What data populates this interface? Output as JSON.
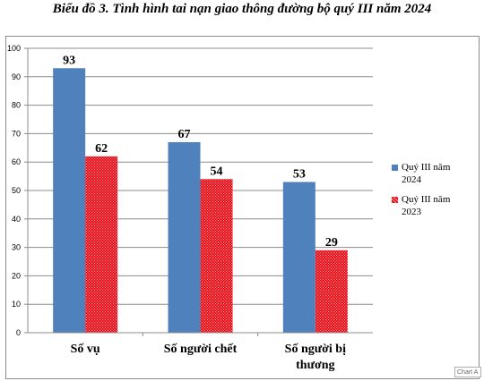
{
  "title": "Biểu đồ 3. Tình hình tai nạn giao thông đường bộ quý III năm 2024",
  "watermark": "Chart A",
  "colors": {
    "series1": "#4f81bd",
    "series2": "#e8101a"
  },
  "chart_data": {
    "type": "bar",
    "title": "Biểu đồ 3. Tình hình tai nạn giao thông đường bộ quý III năm 2024",
    "categories": [
      [
        "Số vụ"
      ],
      [
        "Số người chết"
      ],
      [
        "Số người bị",
        "thương"
      ]
    ],
    "series": [
      {
        "name": "Quý III năm 2024",
        "name_lines": [
          "Quý III năm",
          "2024"
        ],
        "values": [
          93,
          67,
          53
        ]
      },
      {
        "name": "Quý III năm 2023",
        "name_lines": [
          "Quý III năm",
          "2023"
        ],
        "values": [
          62,
          54,
          29
        ]
      }
    ],
    "ylim": [
      0,
      100
    ],
    "yticks": [
      0,
      10,
      20,
      30,
      40,
      50,
      60,
      70,
      80,
      90,
      100
    ],
    "grid": true,
    "legend": "right",
    "data_labels": true
  }
}
